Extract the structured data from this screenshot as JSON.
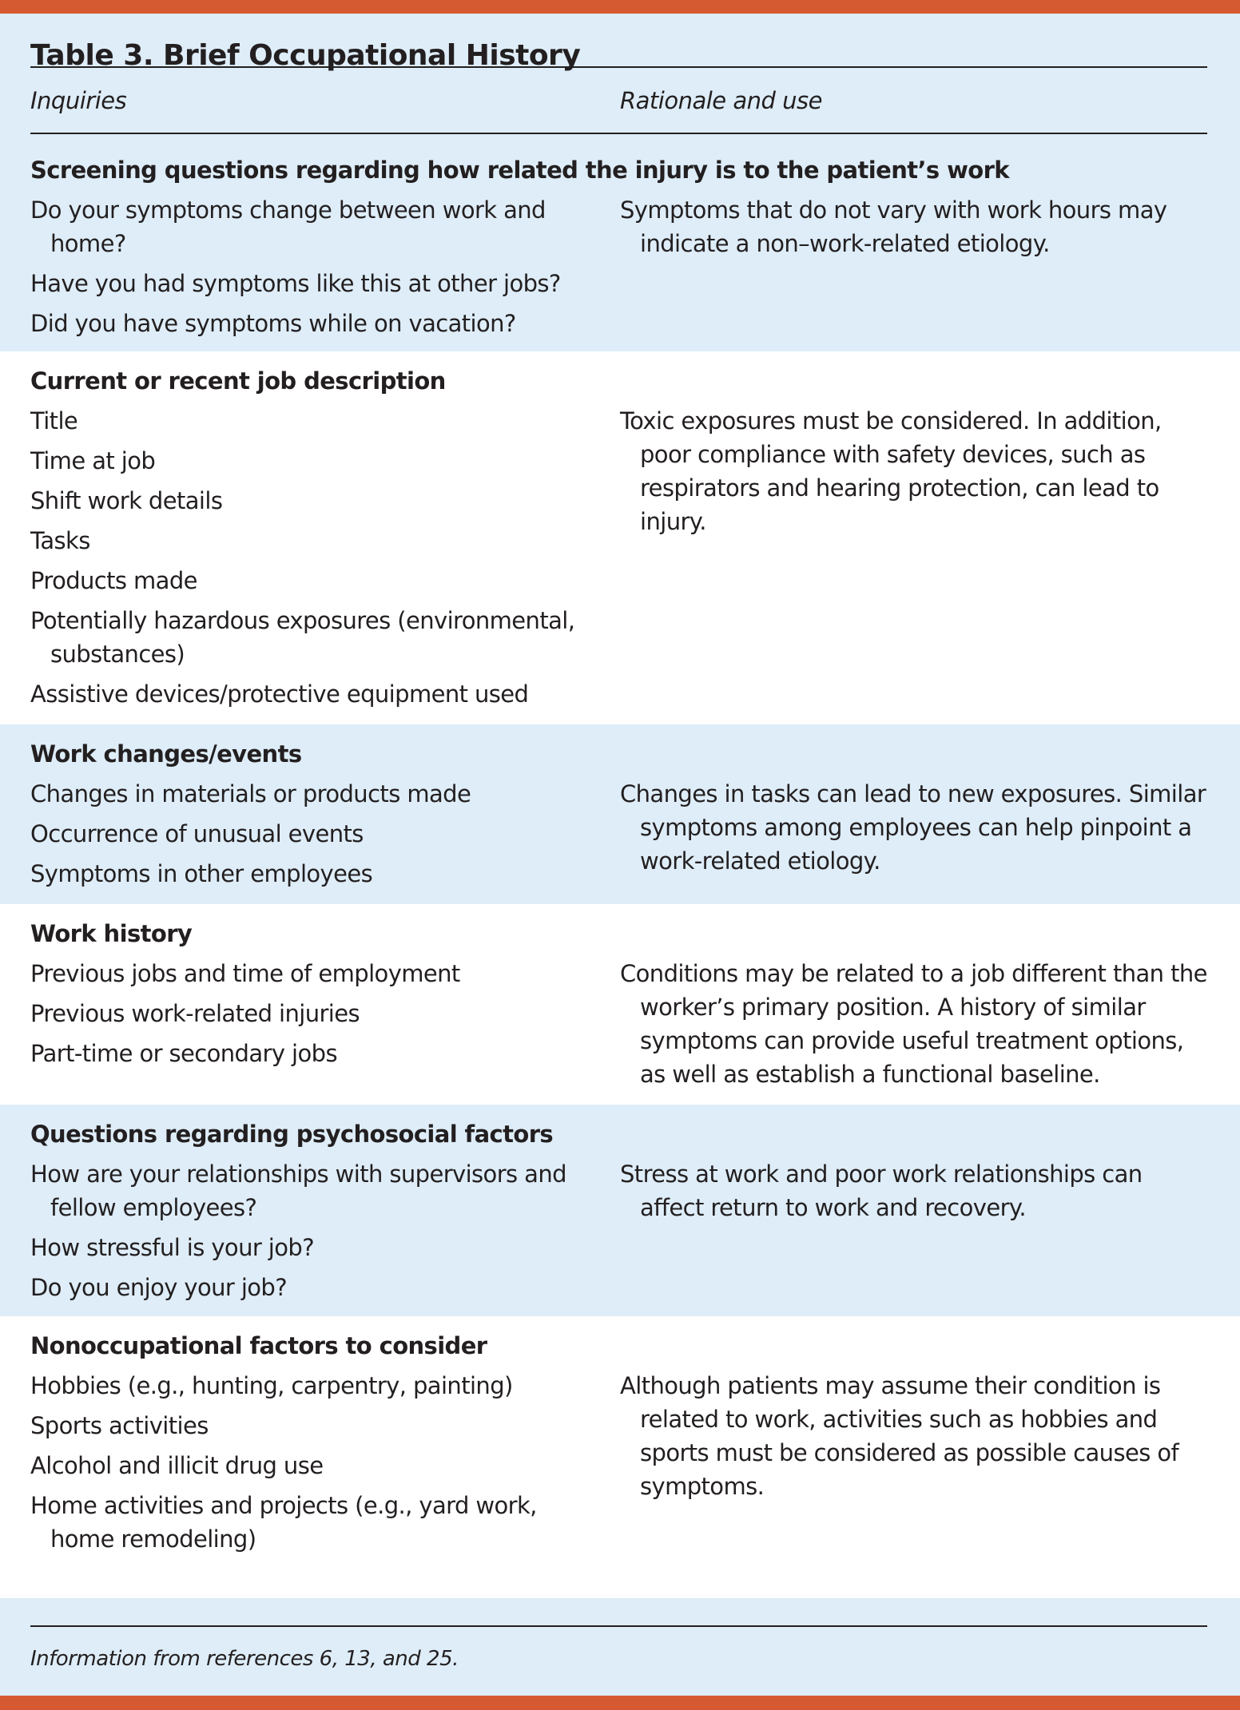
{
  "title": "Table 3. Brief Occupational History",
  "columns": [
    "Inquiries",
    "Rationale and use"
  ],
  "colors": {
    "accent_bar": "#d65a31",
    "shaded_row": "#deedf8",
    "text": "#231f20"
  },
  "sections": [
    {
      "heading": "Screening questions regarding how related the injury is to the patient’s work",
      "inquiries": [
        "Do your symptoms change between work and home?",
        "Have you had symptoms like this at other jobs?",
        "Did you have symptoms while on vacation?"
      ],
      "rationale": "Symptoms that do not vary with work hours may indicate a non–work-related etiology."
    },
    {
      "heading": "Current or recent job description",
      "inquiries": [
        "Title",
        "Time at job",
        "Shift work details",
        "Tasks",
        "Products made",
        "Potentially hazardous exposures (environmental, substances)",
        "Assistive devices/protective equipment used"
      ],
      "rationale": "Toxic exposures must be considered. In addition, poor compliance with safety devices, such as respirators and hearing protection, can lead to injury."
    },
    {
      "heading": "Work changes/events",
      "inquiries": [
        "Changes in materials or products made",
        "Occurrence of unusual events",
        "Symptoms in other employees"
      ],
      "rationale": "Changes in tasks can lead to new exposures. Similar symptoms among employees can help pinpoint a work-related etiology."
    },
    {
      "heading": "Work history",
      "inquiries": [
        "Previous jobs and time of employment",
        "Previous work-related injuries",
        "Part-time or secondary jobs"
      ],
      "rationale": "Conditions may be related to a job different than the worker’s primary position. A history of similar symptoms can provide useful treatment options, as well as establish a functional baseline."
    },
    {
      "heading": "Questions regarding psychosocial factors",
      "inquiries": [
        "How are your relationships with supervisors and fellow employees?",
        "How stressful is your job?",
        "Do you enjoy your job?"
      ],
      "rationale": "Stress at work and poor work relationships can affect return to work and recovery."
    },
    {
      "heading": "Nonoccupational factors to consider",
      "inquiries": [
        "Hobbies (e.g., hunting, carpentry, painting)",
        "Sports activities",
        "Alcohol and illicit drug use",
        "Home activities and projects (e.g., yard work, home remodeling)"
      ],
      "rationale": "Although patients may assume their condition is related to work, activities such as hobbies and sports must be considered as possible causes of symptoms."
    }
  ],
  "footnote": "Information from references 6, 13, and 25."
}
